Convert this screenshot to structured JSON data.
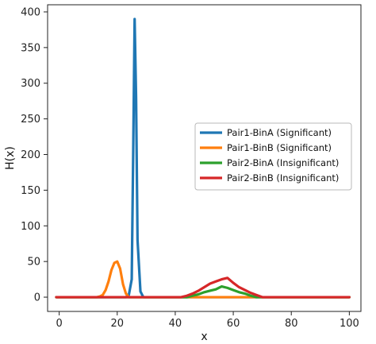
{
  "chart_data": {
    "type": "line",
    "xlabel": "x",
    "ylabel": "H(x)",
    "xlim": [
      -4,
      104
    ],
    "ylim": [
      -20,
      410
    ],
    "xticks": [
      0,
      20,
      40,
      60,
      80,
      100
    ],
    "yticks": [
      0,
      50,
      100,
      150,
      200,
      250,
      300,
      350,
      400
    ],
    "grid": false,
    "legend_position": "right",
    "series": [
      {
        "name": "Pair1-BinA (Significant)",
        "color": "#1f77b4",
        "x": [
          -1,
          23,
          24,
          25,
          25.5,
          26,
          26.5,
          27,
          28,
          29,
          100
        ],
        "y": [
          0,
          0,
          3,
          25,
          200,
          390,
          280,
          80,
          8,
          0,
          0
        ]
      },
      {
        "name": "Pair1-BinB (Significant)",
        "color": "#ff7f0e",
        "x": [
          -1,
          13,
          14,
          15,
          16,
          17,
          18,
          19,
          20,
          21,
          22,
          23,
          24,
          100
        ],
        "y": [
          0,
          0,
          1,
          3,
          10,
          22,
          38,
          48,
          50,
          40,
          18,
          5,
          0,
          0
        ]
      },
      {
        "name": "Pair2-BinA (Insignificant)",
        "color": "#2ca02c",
        "x": [
          -1,
          44,
          46,
          48,
          50,
          52,
          54,
          56,
          58,
          60,
          62,
          64,
          66,
          68,
          100
        ],
        "y": [
          0,
          0,
          2,
          4,
          7,
          9,
          11,
          15,
          13,
          10,
          7,
          5,
          2,
          0,
          0
        ]
      },
      {
        "name": "Pair2-BinB (Insignificant)",
        "color": "#d62728",
        "x": [
          -1,
          42,
          44,
          46,
          48,
          50,
          52,
          54,
          56,
          58,
          60,
          62,
          64,
          66,
          68,
          70,
          100
        ],
        "y": [
          0,
          0,
          2,
          5,
          9,
          14,
          19,
          22,
          25,
          27,
          20,
          14,
          10,
          6,
          3,
          0,
          0
        ]
      }
    ]
  }
}
